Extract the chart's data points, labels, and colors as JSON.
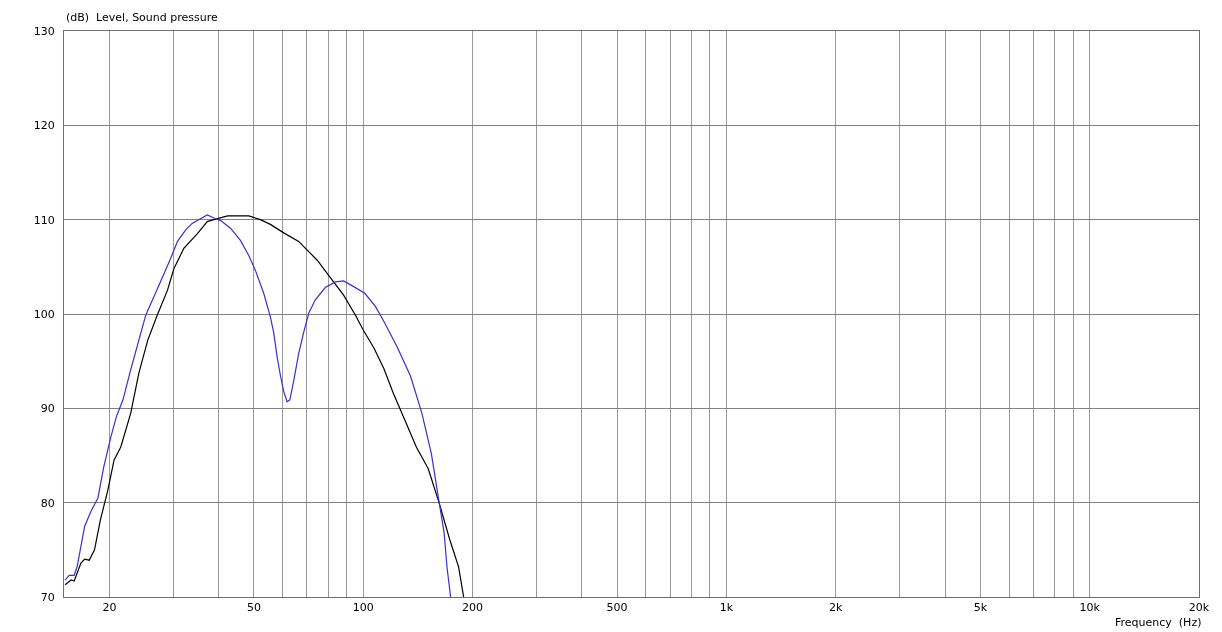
{
  "chart_data": {
    "type": "line",
    "xlabel": "Frequency  (Hz)",
    "ylabel": "(dB)  Level, Sound pressure",
    "log": "x",
    "grid": true,
    "xlim": [
      15,
      20000
    ],
    "xticks": [
      20,
      {
        "value": 30,
        "label": null
      },
      {
        "value": 40,
        "label": null
      },
      50,
      {
        "value": 60,
        "label": null
      },
      {
        "value": 70,
        "label": null
      },
      {
        "value": 80,
        "label": null
      },
      {
        "value": 90,
        "label": null
      },
      100,
      200,
      {
        "value": 300,
        "label": null
      },
      {
        "value": 400,
        "label": null
      },
      500,
      {
        "value": 600,
        "label": null
      },
      {
        "value": 700,
        "label": null
      },
      {
        "value": 800,
        "label": null
      },
      {
        "value": 900,
        "label": null
      },
      {
        "value": 1000,
        "label": "1k"
      },
      {
        "value": 2000,
        "label": "2k"
      },
      {
        "value": 3000,
        "label": null
      },
      {
        "value": 4000,
        "label": null
      },
      {
        "value": 5000,
        "label": "5k"
      },
      {
        "value": 6000,
        "label": null
      },
      {
        "value": 7000,
        "label": null
      },
      {
        "value": 8000,
        "label": null
      },
      {
        "value": 9000,
        "label": null
      },
      {
        "value": 10000,
        "label": "10k"
      },
      {
        "value": 20000,
        "label": "20k"
      }
    ],
    "ylim": [
      70,
      130
    ],
    "yticks": [
      70,
      80,
      90,
      100,
      110,
      120,
      130
    ],
    "series": [
      {
        "color": "#000000",
        "x": [
          15.1,
          15.7,
          16.0,
          16.7,
          17.1,
          17.6,
          18.2,
          18.9,
          19.8,
          20.6,
          21.5,
          22.9,
          24.1,
          25.5,
          27.1,
          28.9,
          30.1,
          32.1,
          34.9,
          37.2,
          38.8,
          42.3,
          48.4,
          52.1,
          55.5,
          60.4,
          66.4,
          74.7,
          80.3,
          88.3,
          95.1,
          100,
          107,
          114,
          121,
          129,
          140,
          151,
          162,
          173,
          183,
          189
        ],
        "values": [
          71.3,
          71.8,
          71.7,
          73.6,
          74.0,
          73.9,
          75.0,
          78.2,
          81.3,
          84.5,
          85.9,
          89.5,
          93.7,
          97.2,
          99.9,
          102.5,
          104.8,
          107.0,
          108.5,
          109.8,
          110.0,
          110.4,
          110.4,
          110.0,
          109.5,
          108.6,
          107.7,
          105.7,
          104.1,
          102.0,
          99.9,
          98.3,
          96.4,
          94.2,
          91.6,
          89.1,
          85.9,
          83.6,
          79.9,
          76.1,
          73.2,
          70.0
        ]
      },
      {
        "color": "#3333cc",
        "x": [
          15.1,
          15.5,
          16.0,
          16.3,
          17.1,
          17.8,
          18.6,
          19.3,
          20.2,
          20.9,
          21.8,
          22.9,
          24.1,
          25.2,
          26.5,
          28.3,
          29.5,
          30.8,
          32.4,
          33.8,
          35.6,
          37.2,
          39.2,
          40.5,
          43.1,
          45.9,
          48.4,
          50.5,
          53.2,
          55.5,
          56.7,
          57.9,
          59.2,
          60.4,
          61.7,
          62.8,
          64.4,
          66.4,
          68.6,
          70.8,
          73.8,
          78.6,
          83.8,
          88.3,
          94.1,
          101,
          108,
          114,
          124,
          135,
          145,
          154,
          162,
          167,
          170,
          174
        ],
        "values": [
          71.8,
          72.3,
          72.3,
          73.2,
          77.5,
          79.1,
          80.5,
          83.8,
          87.0,
          89.1,
          90.9,
          94.1,
          97.2,
          99.9,
          101.8,
          104.3,
          105.9,
          107.7,
          108.9,
          109.6,
          110.1,
          110.5,
          110.1,
          109.9,
          109.1,
          107.8,
          106.2,
          104.6,
          102.2,
          99.7,
          98.0,
          95.5,
          93.4,
          91.8,
          90.7,
          90.9,
          93.0,
          95.8,
          98.1,
          100.1,
          101.5,
          102.8,
          103.4,
          103.5,
          102.9,
          102.2,
          100.8,
          99.2,
          96.5,
          93.4,
          89.5,
          85.2,
          79.9,
          76.8,
          73.2,
          70.0
        ]
      }
    ]
  }
}
